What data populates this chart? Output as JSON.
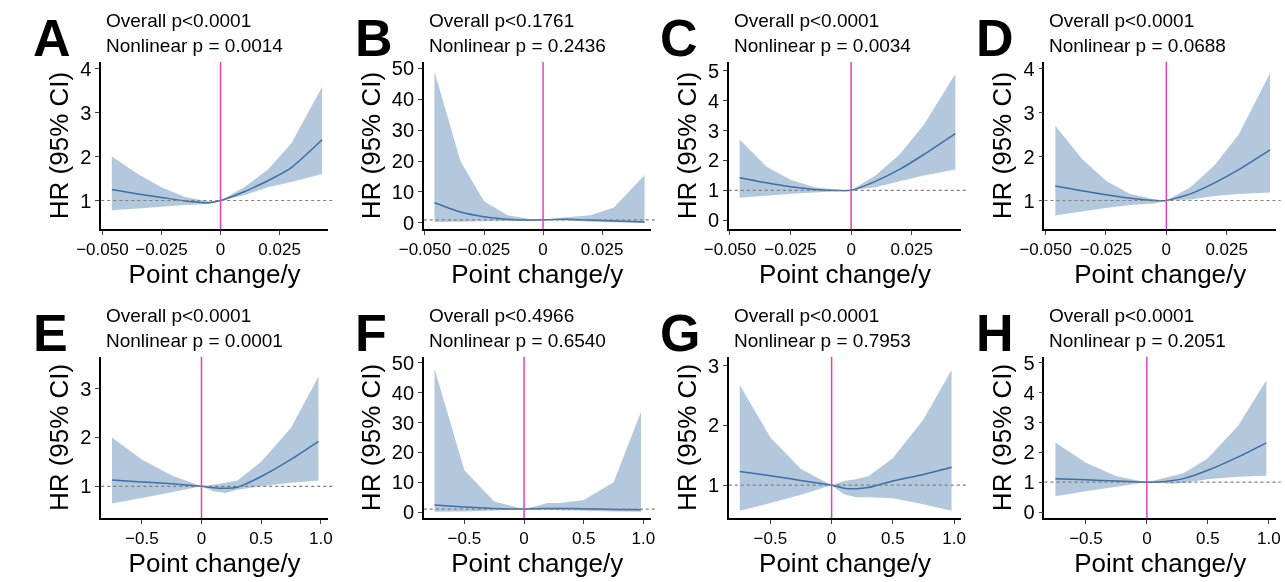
{
  "chart_data": [
    {
      "type": "line",
      "title": "A",
      "annotations": [
        "Overall p<0.0001",
        "Nonlinear p = 0.0014"
      ],
      "xlabel": "Point change/y",
      "ylabel": "HR (95% CI)",
      "xlim": [
        -0.0505,
        0.0455
      ],
      "ylim": [
        0.35,
        4.15
      ],
      "xticks": [
        {
          "value": -0.05,
          "label": "−0.050"
        },
        {
          "value": -0.025,
          "label": "−0.025"
        },
        0,
        0.025
      ],
      "yticks": [
        1,
        2,
        3,
        4
      ],
      "x": [
        -0.046,
        -0.035,
        -0.025,
        -0.015,
        -0.005,
        0,
        0.01,
        0.02,
        0.03,
        0.043
      ],
      "series": [
        {
          "color": "#3b6fa6",
          "values": [
            1.25,
            1.15,
            1.07,
            0.99,
            0.95,
            1.0,
            1.2,
            1.45,
            1.75,
            2.38
          ],
          "lower": [
            0.78,
            0.82,
            0.86,
            0.9,
            0.92,
            1.0,
            1.12,
            1.3,
            1.42,
            1.6
          ],
          "upper": [
            2.0,
            1.6,
            1.3,
            1.08,
            0.98,
            1.0,
            1.3,
            1.7,
            2.3,
            3.58
          ]
        }
      ],
      "ref_lines": [
        {
          "axis": "x",
          "value": 0,
          "color": "#e43fc4"
        },
        {
          "axis": "y",
          "value": 1,
          "color": "#7f7f7f",
          "line_style": "dotted"
        }
      ]
    },
    {
      "type": "line",
      "title": "B",
      "annotations": [
        "Overall p<0.1761",
        "Nonlinear p = 0.2436"
      ],
      "xlabel": "Point change/y",
      "ylabel": "HR (95% CI)",
      "xlim": [
        -0.0505,
        0.0455
      ],
      "ylim": [
        -2,
        52
      ],
      "xticks": [
        {
          "value": -0.05,
          "label": "−0.050"
        },
        {
          "value": -0.025,
          "label": "−0.025"
        },
        0,
        0.025
      ],
      "yticks": [
        0,
        10,
        20,
        30,
        40,
        50
      ],
      "x": [
        -0.046,
        -0.035,
        -0.025,
        -0.015,
        -0.005,
        0,
        0.01,
        0.02,
        0.03,
        0.043
      ],
      "series": [
        {
          "color": "#3b6fa6",
          "values": [
            6.5,
            3.5,
            2,
            1.2,
            0.9,
            1.0,
            1.2,
            0.9,
            0.6,
            0.3
          ],
          "lower": [
            0.3,
            0.4,
            0.5,
            0.6,
            0.7,
            1.0,
            0.8,
            0.4,
            0.2,
            0.1
          ],
          "upper": [
            49,
            20,
            7,
            2.5,
            1.2,
            1.0,
            1.8,
            2.5,
            5,
            15.5
          ]
        }
      ],
      "ref_lines": [
        {
          "axis": "x",
          "value": 0,
          "color": "#e43fc4"
        },
        {
          "axis": "y",
          "value": 1,
          "color": "#7f7f7f",
          "line_style": "dotted"
        }
      ]
    },
    {
      "type": "line",
      "title": "C",
      "annotations": [
        "Overall p<0.0001",
        "Nonlinear p = 0.0034"
      ],
      "xlabel": "Point change/y",
      "ylabel": "HR (95% CI)",
      "xlim": [
        -0.0505,
        0.0455
      ],
      "ylim": [
        -0.3,
        5.3
      ],
      "xticks": [
        {
          "value": -0.05,
          "label": "−0.050"
        },
        {
          "value": -0.025,
          "label": "−0.025"
        },
        0,
        0.025
      ],
      "yticks": [
        0,
        1,
        2,
        3,
        4,
        5
      ],
      "x": [
        -0.046,
        -0.035,
        -0.025,
        -0.015,
        -0.005,
        0,
        0.01,
        0.02,
        0.03,
        0.043
      ],
      "series": [
        {
          "color": "#3b6fa6",
          "values": [
            1.42,
            1.25,
            1.12,
            1.03,
            0.99,
            1.0,
            1.3,
            1.7,
            2.2,
            2.9
          ],
          "lower": [
            0.75,
            0.82,
            0.88,
            0.93,
            0.97,
            1.0,
            1.1,
            1.3,
            1.5,
            1.7
          ],
          "upper": [
            2.7,
            1.8,
            1.35,
            1.1,
            1.01,
            1.0,
            1.5,
            2.2,
            3.2,
            4.9
          ]
        }
      ],
      "ref_lines": [
        {
          "axis": "x",
          "value": 0,
          "color": "#e43fc4"
        },
        {
          "axis": "y",
          "value": 1,
          "color": "#7f7f7f",
          "line_style": "dotted"
        }
      ]
    },
    {
      "type": "line",
      "title": "D",
      "annotations": [
        "Overall p<0.0001",
        "Nonlinear p = 0.0688"
      ],
      "xlabel": "Point change/y",
      "ylabel": "HR (95% CI)",
      "xlim": [
        -0.0505,
        0.0455
      ],
      "ylim": [
        0.35,
        4.15
      ],
      "xticks": [
        {
          "value": -0.05,
          "label": "−0.050"
        },
        {
          "value": -0.025,
          "label": "−0.025"
        },
        0,
        0.025
      ],
      "yticks": [
        1,
        2,
        3,
        4
      ],
      "x": [
        -0.046,
        -0.035,
        -0.025,
        -0.015,
        -0.005,
        0,
        0.01,
        0.02,
        0.03,
        0.043
      ],
      "series": [
        {
          "color": "#3b6fa6",
          "values": [
            1.33,
            1.22,
            1.13,
            1.05,
            1.0,
            1.0,
            1.15,
            1.4,
            1.7,
            2.15
          ],
          "lower": [
            0.66,
            0.75,
            0.83,
            0.9,
            0.93,
            1.0,
            1.02,
            1.1,
            1.15,
            1.18
          ],
          "upper": [
            2.7,
            1.95,
            1.45,
            1.15,
            1.03,
            1.0,
            1.3,
            1.8,
            2.5,
            3.9
          ]
        }
      ],
      "ref_lines": [
        {
          "axis": "x",
          "value": 0,
          "color": "#e43fc4"
        },
        {
          "axis": "y",
          "value": 1,
          "color": "#7f7f7f",
          "line_style": "dotted"
        }
      ]
    },
    {
      "type": "line",
      "title": "E",
      "annotations": [
        "Overall p<0.0001",
        "Nonlinear p = 0.0001"
      ],
      "xlabel": "Point change/y",
      "ylabel": "HR (95% CI)",
      "xlim": [
        -0.84,
        1.06
      ],
      "ylim": [
        0.35,
        3.65
      ],
      "xticks": [
        {
          "value": -0.5,
          "label": "−0.5"
        },
        0,
        0.5,
        {
          "value": 1,
          "label": "1.0"
        }
      ],
      "yticks": [
        1,
        2,
        3
      ],
      "x": [
        -0.75,
        -0.5,
        -0.25,
        0,
        0.1,
        0.2,
        0.3,
        0.5,
        0.75,
        0.98
      ],
      "series": [
        {
          "color": "#3b6fa6",
          "values": [
            1.13,
            1.09,
            1.05,
            1.0,
            0.97,
            0.96,
            0.98,
            1.2,
            1.55,
            1.92
          ],
          "lower": [
            0.65,
            0.76,
            0.88,
            1.0,
            0.9,
            0.86,
            0.93,
            1.0,
            1.07,
            1.12
          ],
          "upper": [
            2.0,
            1.55,
            1.22,
            1.0,
            1.03,
            1.07,
            1.12,
            1.5,
            2.2,
            3.25
          ]
        }
      ],
      "ref_lines": [
        {
          "axis": "x",
          "value": 0,
          "color": "#e43fc4"
        },
        {
          "axis": "y",
          "value": 1,
          "color": "#7f7f7f",
          "line_style": "dotted"
        }
      ]
    },
    {
      "type": "line",
      "title": "F",
      "annotations": [
        "Overall p<0.4966",
        "Nonlinear p = 0.6540"
      ],
      "xlabel": "Point change/y",
      "ylabel": "HR (95% CI)",
      "xlim": [
        -0.84,
        1.06
      ],
      "ylim": [
        -2,
        52
      ],
      "xticks": [
        {
          "value": -0.5,
          "label": "−0.5"
        },
        0,
        0.5,
        {
          "value": 1,
          "label": "1.0"
        }
      ],
      "yticks": [
        0,
        10,
        20,
        30,
        40,
        50
      ],
      "x": [
        -0.75,
        -0.5,
        -0.25,
        0,
        0.1,
        0.2,
        0.3,
        0.5,
        0.75,
        0.98
      ],
      "series": [
        {
          "color": "#3b6fa6",
          "values": [
            2.4,
            1.7,
            1.2,
            1.0,
            1.1,
            1.2,
            1.2,
            1.1,
            0.9,
            0.8
          ],
          "lower": [
            0.1,
            0.2,
            0.5,
            1.0,
            0.8,
            0.7,
            0.6,
            0.4,
            0.2,
            0.1
          ],
          "upper": [
            48,
            14,
            3.5,
            1.0,
            2,
            3,
            3,
            4,
            10,
            33.5
          ]
        }
      ],
      "ref_lines": [
        {
          "axis": "x",
          "value": 0,
          "color": "#e43fc4"
        },
        {
          "axis": "y",
          "value": 1,
          "color": "#7f7f7f",
          "line_style": "dotted"
        }
      ]
    },
    {
      "type": "line",
      "title": "G",
      "annotations": [
        "Overall p<0.0001",
        "Nonlinear p = 0.7953"
      ],
      "xlabel": "Point change/y",
      "ylabel": "HR (95% CI)",
      "xlim": [
        -0.84,
        1.06
      ],
      "ylim": [
        0.45,
        3.15
      ],
      "xticks": [
        {
          "value": -0.5,
          "label": "−0.5"
        },
        0,
        0.5,
        {
          "value": 1,
          "label": "1.0"
        }
      ],
      "yticks": [
        1,
        2,
        3
      ],
      "x": [
        -0.75,
        -0.5,
        -0.25,
        0,
        0.1,
        0.2,
        0.3,
        0.5,
        0.75,
        0.98
      ],
      "series": [
        {
          "color": "#3b6fa6",
          "values": [
            1.23,
            1.16,
            1.08,
            1.0,
            0.95,
            0.94,
            0.96,
            1.07,
            1.18,
            1.3
          ],
          "lower": [
            0.57,
            0.7,
            0.84,
            1.0,
            0.85,
            0.8,
            0.8,
            0.78,
            0.68,
            0.57
          ],
          "upper": [
            2.68,
            1.8,
            1.27,
            1.0,
            1.07,
            1.1,
            1.15,
            1.45,
            2.1,
            2.93
          ]
        }
      ],
      "ref_lines": [
        {
          "axis": "x",
          "value": 0,
          "color": "#e43fc4"
        },
        {
          "axis": "y",
          "value": 1,
          "color": "#7f7f7f",
          "line_style": "dotted"
        }
      ]
    },
    {
      "type": "line",
      "title": "H",
      "annotations": [
        "Overall p<0.0001",
        "Nonlinear p = 0.2051"
      ],
      "xlabel": "Point change/y",
      "ylabel": "HR (95% CI)",
      "xlim": [
        -0.84,
        1.06
      ],
      "ylim": [
        -0.2,
        5.2
      ],
      "xticks": [
        {
          "value": -0.5,
          "label": "−0.5"
        },
        0,
        0.5,
        {
          "value": 1,
          "label": "1.0"
        }
      ],
      "yticks": [
        0,
        1,
        2,
        3,
        4,
        5
      ],
      "x": [
        -0.75,
        -0.5,
        -0.25,
        0,
        0.1,
        0.2,
        0.3,
        0.5,
        0.75,
        0.98
      ],
      "series": [
        {
          "color": "#3b6fa6",
          "values": [
            1.12,
            1.08,
            1.04,
            1.0,
            1.01,
            1.05,
            1.12,
            1.4,
            1.85,
            2.32
          ],
          "lower": [
            0.53,
            0.7,
            0.85,
            1.0,
            0.97,
            0.95,
            0.97,
            1.1,
            1.18,
            1.22
          ],
          "upper": [
            2.33,
            1.65,
            1.2,
            1.0,
            1.1,
            1.2,
            1.3,
            1.8,
            2.9,
            4.42
          ]
        }
      ],
      "ref_lines": [
        {
          "axis": "x",
          "value": 0,
          "color": "#e43fc4"
        },
        {
          "axis": "y",
          "value": 1,
          "color": "#7f7f7f",
          "line_style": "dotted"
        }
      ]
    }
  ]
}
